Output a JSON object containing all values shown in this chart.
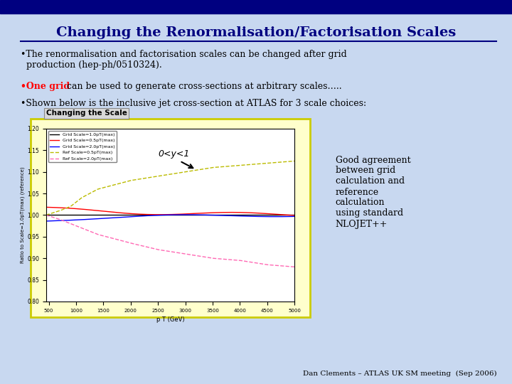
{
  "title": "Changing the Renormalisation/Factorisation Scales",
  "bg_color": "#c8d8f0",
  "top_bar_color": "#000080",
  "title_color": "#000080",
  "bullet1_black": "•The renormalisation and factorisation scales can be changed after grid\n  production (hep-ph/0510324).",
  "bullet2_red_part": "•One grid",
  "bullet2_rest": " can be used to generate cross-sections at arbitrary scales…..",
  "bullet3": "•Shown below is the inclusive jet cross-section at ATLAS for 3 scale choices:",
  "plot_title": "Changing the Scale",
  "plot_xlabel": "p T (GeV)",
  "plot_ylabel": "Ratio to Scale=1.0pT(max) (reference)",
  "annotation_text": "0<y<1",
  "right_text": "Good agreement\nbetween grid\ncalculation and\nreference\ncalculation\nusing standard\nNLOJET++",
  "footer": "Dan Clements – ATLAS UK SM meeting  (Sep 2006)",
  "plot_box_color": "#ffffcc",
  "plot_border_color": "#cccc00"
}
